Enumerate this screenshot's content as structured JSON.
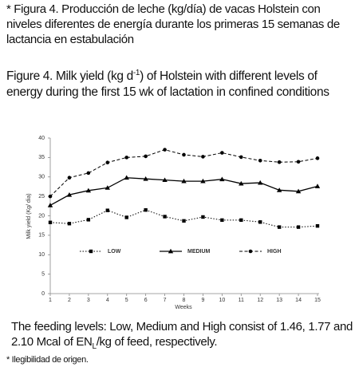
{
  "caption_es": "* Figura 4. Producción de leche (kg/día) de vacas Holstein con niveles diferentes de energía durante los primeras 15 semanas de lactancia en estabulación",
  "caption_en": [
    "Figure 4. Milk yield (kg d",
    "-1",
    ") of Holstein with different levels of energy during the first 15 wk of lactation in confined conditions"
  ],
  "feeding_note": [
    "The feeding levels: Low, Medium and High consist of 1.46, 1.77 and 2.10 Mcal of EN",
    "L",
    "/kg of feed, respectively."
  ],
  "footnote": "* Ilegibilidad de origen.",
  "chart_data": {
    "type": "line",
    "xlabel": "Weeks",
    "ylabel": "Milk yield (Kg/ dia)",
    "x": [
      1,
      2,
      3,
      4,
      5,
      6,
      7,
      8,
      9,
      10,
      11,
      12,
      13,
      14,
      15
    ],
    "xlim": [
      1,
      15
    ],
    "xticks": [
      1,
      2,
      3,
      4,
      5,
      6,
      7,
      8,
      9,
      10,
      11,
      12,
      13,
      14,
      15
    ],
    "ylim": [
      0,
      40
    ],
    "yticks": [
      0,
      5,
      10,
      15,
      20,
      25,
      30,
      35,
      40
    ],
    "legend": "inside",
    "series": [
      {
        "name": "LOW",
        "color": "#000000",
        "marker": "square",
        "dash": "dotted",
        "values": [
          18.3,
          18.0,
          19.0,
          21.4,
          19.6,
          21.5,
          19.8,
          18.7,
          19.7,
          18.9,
          18.9,
          18.4,
          17.1,
          17.1,
          17.4
        ]
      },
      {
        "name": "MEDIUM",
        "color": "#000000",
        "marker": "triangle",
        "dash": "solid",
        "values": [
          22.7,
          25.4,
          26.5,
          27.2,
          29.8,
          29.5,
          29.2,
          28.9,
          28.9,
          29.4,
          28.3,
          28.5,
          26.6,
          26.3,
          27.6
        ]
      },
      {
        "name": "HIGH",
        "color": "#000000",
        "marker": "circle",
        "dash": "dashed",
        "values": [
          25.0,
          29.8,
          31.0,
          33.7,
          35.0,
          35.3,
          37.0,
          35.7,
          35.2,
          36.2,
          35.1,
          34.2,
          33.8,
          33.9,
          34.8
        ]
      }
    ]
  }
}
